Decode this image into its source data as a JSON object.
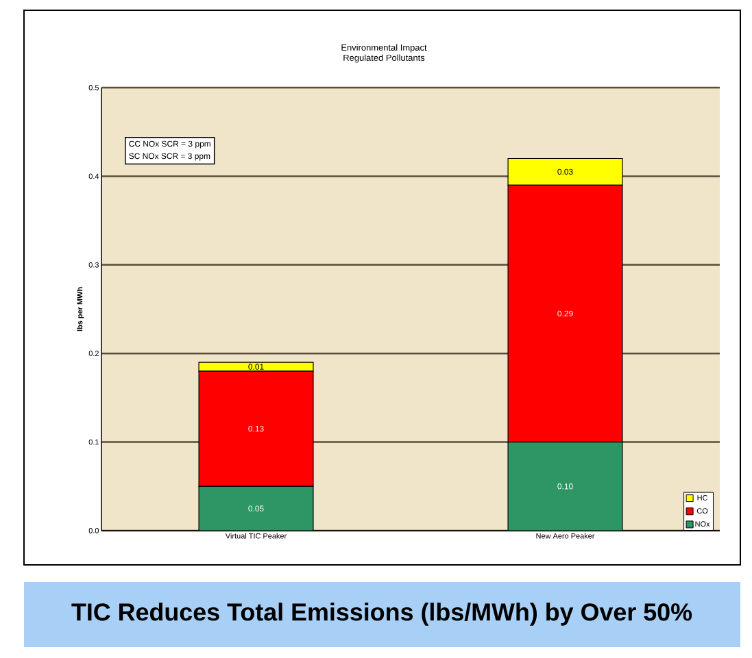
{
  "chart_data": {
    "type": "bar",
    "stacked": true,
    "title": "Environmental Impact",
    "subtitle": "Regulated Pollutants",
    "ylabel": "lbs per MWh",
    "categories": [
      "Virtual TIC Peaker",
      "New Aero Peaker"
    ],
    "series": [
      {
        "name": "NOx",
        "color": "#2e9565",
        "values": [
          0.05,
          0.1
        ],
        "value_labels": [
          "0.05",
          "0.10"
        ]
      },
      {
        "name": "CO",
        "color": "#ff0000",
        "values": [
          0.13,
          0.29
        ],
        "value_labels": [
          "0.13",
          "0.29"
        ]
      },
      {
        "name": "HC",
        "color": "#ffff00",
        "values": [
          0.01,
          0.03
        ],
        "value_labels": [
          "0.01",
          "0.03"
        ]
      }
    ],
    "ylim": [
      0,
      0.5
    ],
    "yticks": [
      {
        "value": 0,
        "label": "0.0"
      },
      0.1,
      0.2,
      0.3,
      0.4,
      0.5
    ],
    "grid": "y",
    "legend": "bottom right",
    "annotations": [
      "CC NOx SCR = 3 ppm",
      "SC NOx SCR = 3 ppm",
      "TIC Reduces Total Emissions (lbs/MWh) by Over 50%"
    ]
  }
}
